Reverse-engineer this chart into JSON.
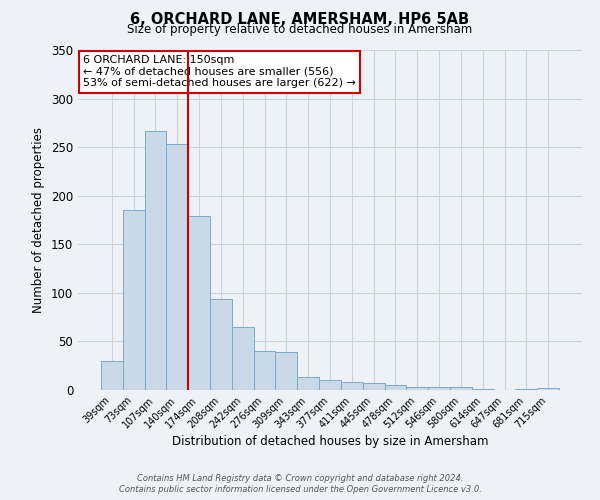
{
  "title": "6, ORCHARD LANE, AMERSHAM, HP6 5AB",
  "subtitle": "Size of property relative to detached houses in Amersham",
  "xlabel": "Distribution of detached houses by size in Amersham",
  "ylabel": "Number of detached properties",
  "bar_labels": [
    "39sqm",
    "73sqm",
    "107sqm",
    "140sqm",
    "174sqm",
    "208sqm",
    "242sqm",
    "276sqm",
    "309sqm",
    "343sqm",
    "377sqm",
    "411sqm",
    "445sqm",
    "478sqm",
    "512sqm",
    "546sqm",
    "580sqm",
    "614sqm",
    "647sqm",
    "681sqm",
    "715sqm"
  ],
  "bar_values": [
    30,
    185,
    267,
    253,
    179,
    94,
    65,
    40,
    39,
    13,
    10,
    8,
    7,
    5,
    3,
    3,
    3,
    1,
    0,
    1,
    2
  ],
  "bar_color": "#c9d9e8",
  "bar_edgecolor": "#7aabcd",
  "ylim": [
    0,
    350
  ],
  "yticks": [
    0,
    50,
    100,
    150,
    200,
    250,
    300,
    350
  ],
  "vline_x_index": 3,
  "vline_color": "#cc0000",
  "annotation_title": "6 ORCHARD LANE: 150sqm",
  "annotation_line1": "← 47% of detached houses are smaller (556)",
  "annotation_line2": "53% of semi-detached houses are larger (622) →",
  "annotation_box_edgecolor": "#cc0000",
  "bg_color": "#eef2f7",
  "grid_color": "#c8d4e0",
  "footer1": "Contains HM Land Registry data © Crown copyright and database right 2024.",
  "footer2": "Contains public sector information licensed under the Open Government Licence v3.0."
}
